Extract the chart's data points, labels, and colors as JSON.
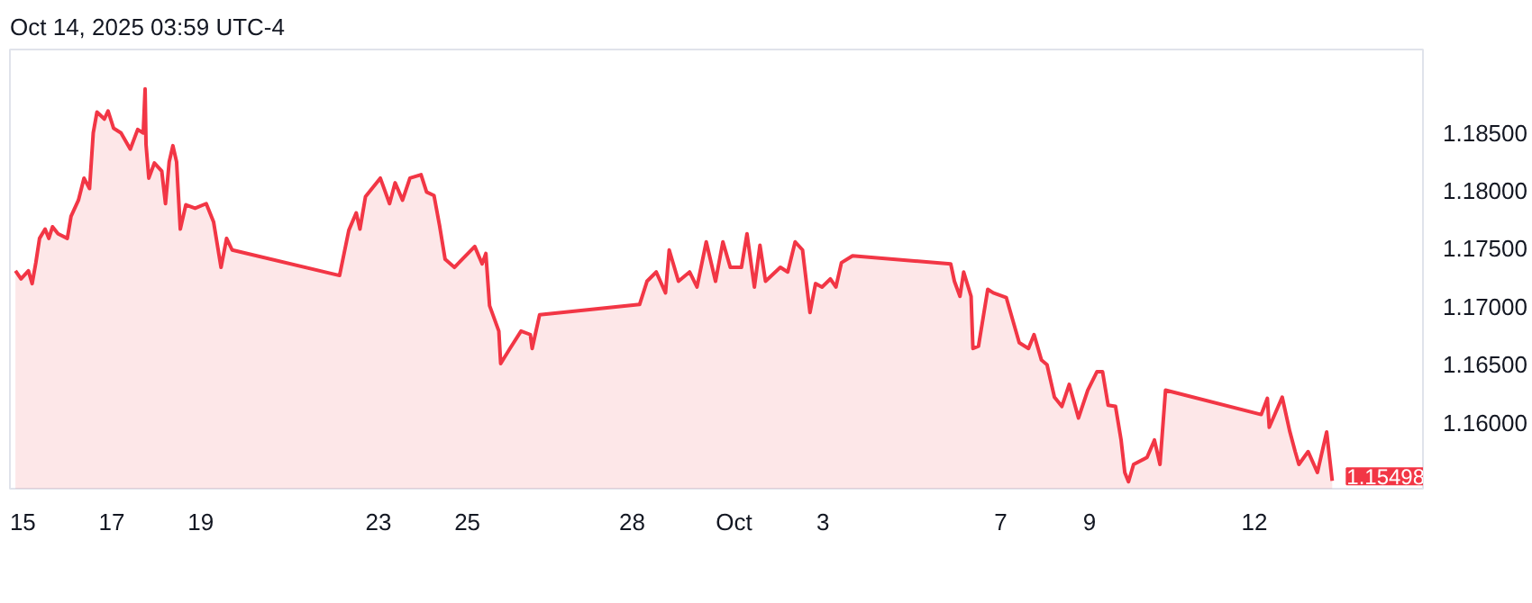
{
  "chart_data": {
    "type": "area",
    "annotations": [
      "Oct 14, 2025 03:59 UTC-4",
      {
        "text": "1.15498",
        "x": "2025-10-14T11:00",
        "y": 1.15498
      }
    ],
    "x": [
      "2025-09-14T20:00",
      "2025-09-14T23:00",
      "2025-09-15T03:00",
      "2025-09-15T05:00",
      "2025-09-15T07:00",
      "2025-09-15T09:00",
      "2025-09-15T12:00",
      "2025-09-15T14:00",
      "2025-09-15T16:00",
      "2025-09-15T19:00",
      "2025-09-16T00:00",
      "2025-09-16T02:00",
      "2025-09-16T06:00",
      "2025-09-16T09:00",
      "2025-09-16T12:00",
      "2025-09-16T14:00",
      "2025-09-16T16:00",
      "2025-09-16T20:00",
      "2025-09-16T22:00",
      "2025-09-17T01:00",
      "2025-09-17T05:00",
      "2025-09-17T10:00",
      "2025-09-17T14:00",
      "2025-09-17T17:00",
      "2025-09-17T18:00",
      "2025-09-17T18:30",
      "2025-09-17T20:00",
      "2025-09-17T23:00",
      "2025-09-18T03:00",
      "2025-09-18T05:00",
      "2025-09-18T07:00",
      "2025-09-18T09:00",
      "2025-09-18T11:00",
      "2025-09-18T13:00",
      "2025-09-18T16:00",
      "2025-09-18T21:00",
      "2025-09-19T03:00",
      "2025-09-19T07:00",
      "2025-09-19T11:00",
      "2025-09-19T14:00",
      "2025-09-19T17:00",
      "2025-09-22T03:00",
      "2025-09-22T08:00",
      "2025-09-22T12:00",
      "2025-09-22T14:00",
      "2025-09-22T17:00",
      "2025-09-23T01:00",
      "2025-09-23T06:00",
      "2025-09-23T09:00",
      "2025-09-23T13:00",
      "2025-09-23T17:00",
      "2025-09-23T23:00",
      "2025-09-24T02:00",
      "2025-09-24T06:00",
      "2025-09-24T09:00",
      "2025-09-24T12:00",
      "2025-09-24T17:00",
      "2025-09-25T04:00",
      "2025-09-25T08:00",
      "2025-09-25T10:00",
      "2025-09-25T12:00",
      "2025-09-25T17:00",
      "2025-09-25T18:00",
      "2025-09-25T23:00",
      "2025-09-26T05:00",
      "2025-09-26T10:00",
      "2025-09-26T11:00",
      "2025-09-26T15:00",
      "2025-09-28T21:00",
      "2025-09-29T01:00",
      "2025-09-29T06:00",
      "2025-09-29T11:00",
      "2025-09-29T13:00",
      "2025-09-29T18:00",
      "2025-09-30T00:00",
      "2025-09-30T04:00",
      "2025-09-30T09:00",
      "2025-09-30T14:00",
      "2025-09-30T18:00",
      "2025-09-30T22:00",
      "2025-10-01T04:00",
      "2025-10-01T07:00",
      "2025-10-01T11:00",
      "2025-10-01T14:00",
      "2025-10-01T17:00",
      "2025-10-02T01:00",
      "2025-10-02T05:00",
      "2025-10-02T09:00",
      "2025-10-02T13:00",
      "2025-10-02T17:00",
      "2025-10-02T20:00",
      "2025-10-02T23:30",
      "2025-10-03T04:00",
      "2025-10-03T07:00",
      "2025-10-03T10:00",
      "2025-10-03T16:00",
      "2025-10-05T21:00",
      "2025-10-05T23:00",
      "2025-10-06T02:00",
      "2025-10-06T04:00",
      "2025-10-06T08:00",
      "2025-10-06T09:00",
      "2025-10-06T12:00",
      "2025-10-06T17:00",
      "2025-10-06T20:00",
      "2025-10-07T03:00",
      "2025-10-07T10:00",
      "2025-10-07T15:00",
      "2025-10-07T18:00",
      "2025-10-07T22:00",
      "2025-10-08T01:00",
      "2025-10-08T05:00",
      "2025-10-08T09:00",
      "2025-10-08T13:00",
      "2025-10-08T18:00",
      "2025-10-08T23:00",
      "2025-10-09T04:00",
      "2025-10-09T07:00",
      "2025-10-09T10:00",
      "2025-10-09T14:00",
      "2025-10-09T17:00",
      "2025-10-09T19:00",
      "2025-10-09T21:00",
      "2025-10-09T23:45",
      "2025-10-10T07:00",
      "2025-10-10T11:00",
      "2025-10-10T14:00",
      "2025-10-10T17:00",
      "2025-10-12T20:40",
      "2025-10-13T00:00",
      "2025-10-13T01:00",
      "2025-10-13T08:00",
      "2025-10-13T12:00",
      "2025-10-13T15:00",
      "2025-10-13T17:00",
      "2025-10-13T22:00",
      "2025-10-14T03:00",
      "2025-10-14T08:00",
      "2025-10-14T11:00"
    ],
    "series": [
      {
        "color": "#f23645",
        "values": [
          1.1731,
          1.1724,
          1.1731,
          1.172,
          1.1738,
          1.1759,
          1.1767,
          1.1759,
          1.1769,
          1.1763,
          1.1759,
          1.1778,
          1.1792,
          1.1811,
          1.1802,
          1.185,
          1.1868,
          1.1862,
          1.1869,
          1.1854,
          1.185,
          1.1836,
          1.1853,
          1.185,
          1.1888,
          1.184,
          1.1811,
          1.1824,
          1.1817,
          1.1789,
          1.1825,
          1.1839,
          1.1825,
          1.1767,
          1.1788,
          1.1785,
          1.1789,
          1.1773,
          1.1734,
          1.1759,
          1.1749,
          1.1727,
          1.1766,
          1.1781,
          1.1767,
          1.1795,
          1.1811,
          1.1789,
          1.1807,
          1.1792,
          1.1811,
          1.1814,
          1.1799,
          1.1796,
          1.177,
          1.1741,
          1.1734,
          1.1752,
          1.1737,
          1.1746,
          1.1701,
          1.1679,
          1.1651,
          1.1664,
          1.1679,
          1.1676,
          1.1664,
          1.1693,
          1.1702,
          1.1722,
          1.173,
          1.1712,
          1.1749,
          1.1722,
          1.173,
          1.1717,
          1.1756,
          1.1722,
          1.1756,
          1.1734,
          1.1734,
          1.1763,
          1.1717,
          1.1753,
          1.1722,
          1.1734,
          1.173,
          1.1756,
          1.1749,
          1.1695,
          1.172,
          1.1717,
          1.1724,
          1.1717,
          1.1738,
          1.1744,
          1.1737,
          1.1722,
          1.1709,
          1.173,
          1.1709,
          1.1664,
          1.1666,
          1.1715,
          1.1712,
          1.1708,
          1.1669,
          1.1664,
          1.1676,
          1.1654,
          1.165,
          1.1622,
          1.1614,
          1.1633,
          1.1604,
          1.1628,
          1.1644,
          1.1644,
          1.1615,
          1.1614,
          1.1585,
          1.1557,
          1.1549,
          1.1564,
          1.157,
          1.1585,
          1.1564,
          1.1628,
          1.1607,
          1.1621,
          1.1596,
          1.1622,
          1.1593,
          1.1575,
          1.1564,
          1.1575,
          1.1557,
          1.1592,
          1.15498
        ]
      }
    ],
    "xlim": [
      "2025-09-14T17:00",
      "2025-10-16T12:00"
    ],
    "ylim": [
      1.1543,
      1.1922
    ],
    "xticks": [
      {
        "value": "2025-09-15",
        "label": "15"
      },
      {
        "value": "2025-09-17",
        "label": "17"
      },
      {
        "value": "2025-09-19",
        "label": "19"
      },
      {
        "value": "2025-09-23",
        "label": "23"
      },
      {
        "value": "2025-09-25",
        "label": "25"
      },
      {
        "value": "2025-09-28T17:00",
        "label": "28"
      },
      {
        "value": "2025-10-01",
        "label": "Oct"
      },
      {
        "value": "2025-10-03",
        "label": "3"
      },
      {
        "value": "2025-10-07",
        "label": "7"
      },
      {
        "value": "2025-10-09",
        "label": "9"
      },
      {
        "value": "2025-10-12T17:00",
        "label": "12"
      }
    ],
    "yticks": [
      {
        "value": 1.16,
        "label": "1.16000"
      },
      {
        "value": 1.165,
        "label": "1.16500"
      },
      {
        "value": 1.17,
        "label": "1.17000"
      },
      {
        "value": 1.175,
        "label": "1.17500"
      },
      {
        "value": 1.18,
        "label": "1.18000"
      },
      {
        "value": 1.185,
        "label": "1.18500"
      }
    ],
    "grid": false
  }
}
